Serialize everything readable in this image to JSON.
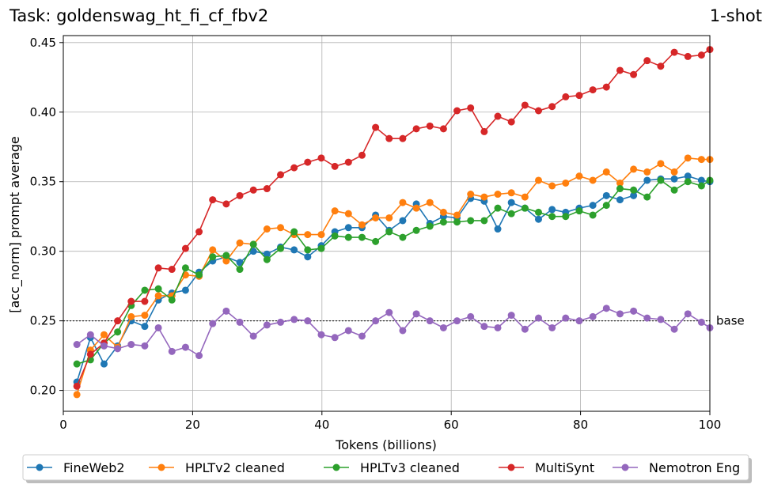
{
  "chart_data": {
    "type": "line",
    "title": "Task: goldenswag_ht_fi_cf_fbv2",
    "subtitle": "1-shot",
    "xlabel": "Tokens (billions)",
    "ylabel": "[acc_norm] prompt average",
    "xlim": [
      0,
      100
    ],
    "ylim": [
      0.185,
      0.455
    ],
    "xticks": [
      0,
      20,
      40,
      60,
      80,
      100
    ],
    "yticks": [
      0.2,
      0.25,
      0.3,
      0.35,
      0.4,
      0.45
    ],
    "grid": true,
    "legend_position": "bottom",
    "baseline": {
      "value": 0.25,
      "label": "base"
    },
    "x": [
      2.1,
      4.2,
      6.3,
      8.4,
      10.5,
      12.6,
      14.7,
      16.8,
      18.9,
      21.0,
      23.1,
      25.2,
      27.3,
      29.4,
      31.5,
      33.6,
      35.7,
      37.8,
      39.9,
      42.0,
      44.1,
      46.2,
      48.3,
      50.4,
      52.5,
      54.6,
      56.7,
      58.8,
      60.9,
      63.0,
      65.1,
      67.2,
      69.3,
      71.4,
      73.5,
      75.6,
      77.7,
      79.8,
      81.9,
      84.0,
      86.1,
      88.2,
      90.3,
      92.4,
      94.5,
      96.6,
      98.7,
      100.0
    ],
    "series": [
      {
        "name": "FineWeb2",
        "color": "#1f77b4",
        "values": [
          0.206,
          0.238,
          0.219,
          0.232,
          0.25,
          0.246,
          0.265,
          0.27,
          0.272,
          0.285,
          0.293,
          0.296,
          0.292,
          0.3,
          0.298,
          0.303,
          0.301,
          0.296,
          0.304,
          0.314,
          0.317,
          0.317,
          0.326,
          0.315,
          0.322,
          0.334,
          0.32,
          0.325,
          0.324,
          0.338,
          0.336,
          0.316,
          0.335,
          0.331,
          0.323,
          0.33,
          0.328,
          0.331,
          0.333,
          0.34,
          0.337,
          0.34,
          0.351,
          0.352,
          0.352,
          0.354,
          0.351,
          0.35
        ]
      },
      {
        "name": "HPLTv2 cleaned",
        "color": "#ff7f0e",
        "values": [
          0.197,
          0.229,
          0.24,
          0.231,
          0.253,
          0.254,
          0.268,
          0.268,
          0.283,
          0.282,
          0.301,
          0.293,
          0.306,
          0.305,
          0.316,
          0.317,
          0.312,
          0.312,
          0.312,
          0.329,
          0.327,
          0.319,
          0.324,
          0.324,
          0.335,
          0.331,
          0.335,
          0.328,
          0.326,
          0.341,
          0.339,
          0.341,
          0.342,
          0.339,
          0.351,
          0.347,
          0.349,
          0.354,
          0.351,
          0.357,
          0.349,
          0.359,
          0.357,
          0.363,
          0.357,
          0.367,
          0.366,
          0.366
        ]
      },
      {
        "name": "HPLTv3 cleaned",
        "color": "#2ca02c",
        "values": [
          0.219,
          0.222,
          0.234,
          0.242,
          0.261,
          0.272,
          0.273,
          0.265,
          0.288,
          0.283,
          0.296,
          0.297,
          0.287,
          0.305,
          0.294,
          0.302,
          0.314,
          0.301,
          0.302,
          0.311,
          0.31,
          0.31,
          0.307,
          0.314,
          0.31,
          0.315,
          0.318,
          0.321,
          0.321,
          0.322,
          0.322,
          0.331,
          0.327,
          0.331,
          0.328,
          0.325,
          0.325,
          0.329,
          0.326,
          0.333,
          0.345,
          0.344,
          0.339,
          0.351,
          0.344,
          0.35,
          0.347,
          0.351
        ]
      },
      {
        "name": "MultiSynt",
        "color": "#d62728",
        "values": [
          0.203,
          0.226,
          0.234,
          0.25,
          0.264,
          0.264,
          0.288,
          0.287,
          0.302,
          0.314,
          0.337,
          0.334,
          0.34,
          0.344,
          0.345,
          0.355,
          0.36,
          0.364,
          0.367,
          0.361,
          0.364,
          0.369,
          0.389,
          0.381,
          0.381,
          0.388,
          0.39,
          0.388,
          0.401,
          0.403,
          0.386,
          0.397,
          0.393,
          0.405,
          0.401,
          0.404,
          0.411,
          0.412,
          0.416,
          0.418,
          0.43,
          0.427,
          0.437,
          0.433,
          0.443,
          0.44,
          0.441,
          0.445
        ]
      },
      {
        "name": "Nemotron Eng",
        "color": "#9467bd",
        "values": [
          0.233,
          0.24,
          0.232,
          0.23,
          0.233,
          0.232,
          0.245,
          0.228,
          0.231,
          0.225,
          0.248,
          0.257,
          0.249,
          0.239,
          0.247,
          0.249,
          0.251,
          0.25,
          0.24,
          0.238,
          0.243,
          0.239,
          0.25,
          0.256,
          0.243,
          0.255,
          0.25,
          0.245,
          0.25,
          0.253,
          0.246,
          0.245,
          0.254,
          0.244,
          0.252,
          0.245,
          0.252,
          0.25,
          0.253,
          0.259,
          0.255,
          0.257,
          0.252,
          0.251,
          0.244,
          0.255,
          0.249,
          0.245
        ]
      }
    ]
  }
}
